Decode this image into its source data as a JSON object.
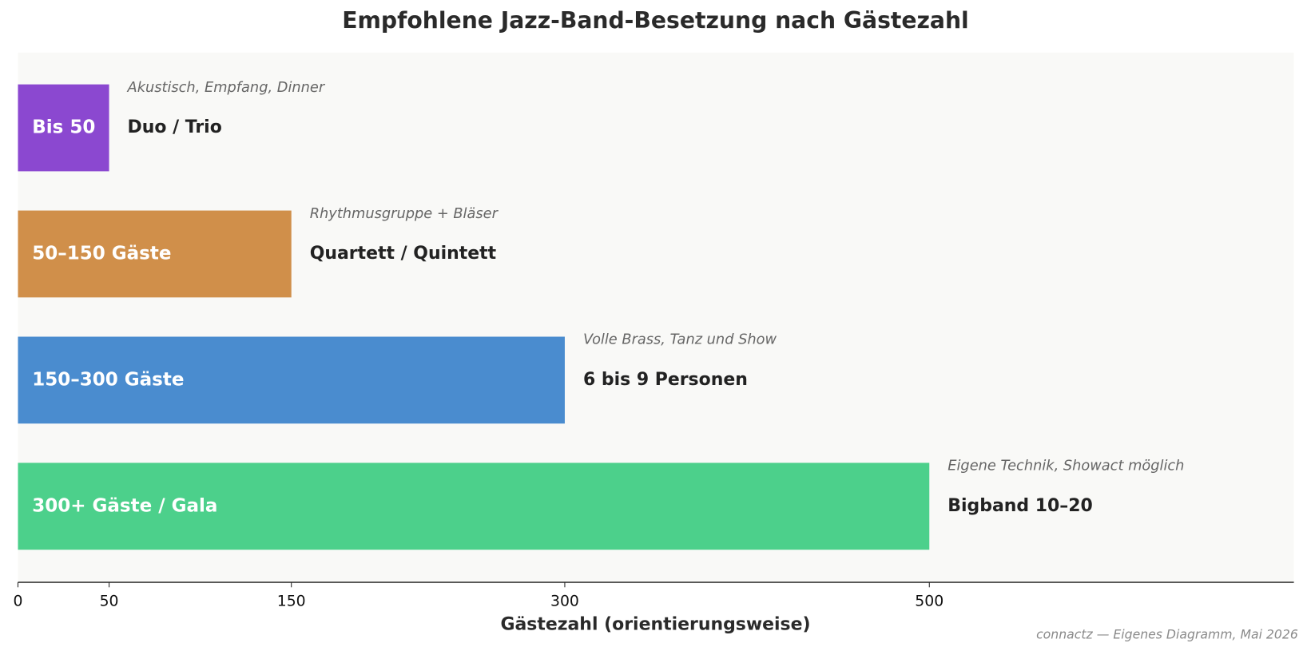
{
  "chart_data": {
    "type": "barh",
    "title": "Empfohlene Jazz-Band-Besetzung nach Gästezahl",
    "categories": [
      "Bis 50",
      "50–150 Gäste",
      "150–300 Gäste",
      "300+ Gäste / Gala"
    ],
    "values": [
      50,
      150,
      300,
      500
    ],
    "colors": [
      "#8b48d0",
      "#d08f4a",
      "#4a8ccf",
      "#4cd08b"
    ],
    "bands": [
      "Duo / Trio",
      "Quartett / Quintett",
      "6 bis 9 Personen",
      "Bigband 10–20"
    ],
    "descriptions": [
      "Akustisch, Empfang, Dinner",
      "Rhythmusgruppe + Bläser",
      "Volle Brass, Tanz und Show",
      "Eigene Technik, Showact möglich"
    ],
    "xlim": [
      0,
      700
    ],
    "xticks": [
      0,
      50,
      150,
      300,
      500
    ],
    "xlabel": "Gästezahl (orientierungsweise)",
    "footnote": "connactz — Eigenes Diagramm, Mai 2026"
  }
}
